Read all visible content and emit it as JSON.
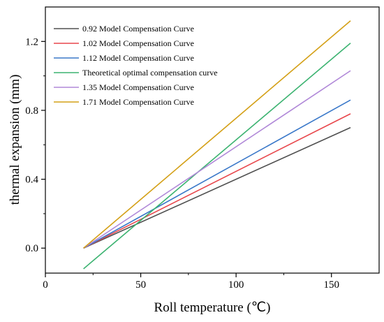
{
  "chart_data": {
    "type": "line",
    "title": "",
    "xlabel": "Roll temperature (℃)",
    "ylabel": "thermal expansion (mm)",
    "xlim": [
      0,
      175
    ],
    "ylim": [
      -0.145,
      1.4
    ],
    "xticks": [
      0,
      50,
      100,
      150
    ],
    "yticks": [
      0.0,
      0.4,
      0.8,
      1.2
    ],
    "xtick_labels": [
      "0",
      "50",
      "100",
      "150"
    ],
    "ytick_labels": [
      "0.0",
      "0.4",
      "0.8",
      "1.2"
    ],
    "grid": false,
    "legend_position": "top-left",
    "series": [
      {
        "name": "0.92 Model Compensation Curve",
        "color": "#505050",
        "x": [
          20,
          160
        ],
        "y": [
          0.0,
          0.7
        ]
      },
      {
        "name": "1.02 Model Compensation Curve",
        "color": "#e8474c",
        "x": [
          20,
          160
        ],
        "y": [
          0.0,
          0.78
        ]
      },
      {
        "name": "1.12 Model Compensation Curve",
        "color": "#3a78c9",
        "x": [
          20,
          160
        ],
        "y": [
          0.0,
          0.86
        ]
      },
      {
        "name": "Theoretical optimal compensation curve",
        "color": "#3cb371",
        "x": [
          20,
          160
        ],
        "y": [
          -0.12,
          1.19
        ]
      },
      {
        "name": "1.35 Model Compensation Curve",
        "color": "#b088d8",
        "x": [
          20,
          160
        ],
        "y": [
          0.0,
          1.03
        ]
      },
      {
        "name": "1.71 Model Compensation Curve",
        "color": "#d4a017",
        "x": [
          20,
          160
        ],
        "y": [
          0.0,
          1.32
        ]
      }
    ]
  }
}
